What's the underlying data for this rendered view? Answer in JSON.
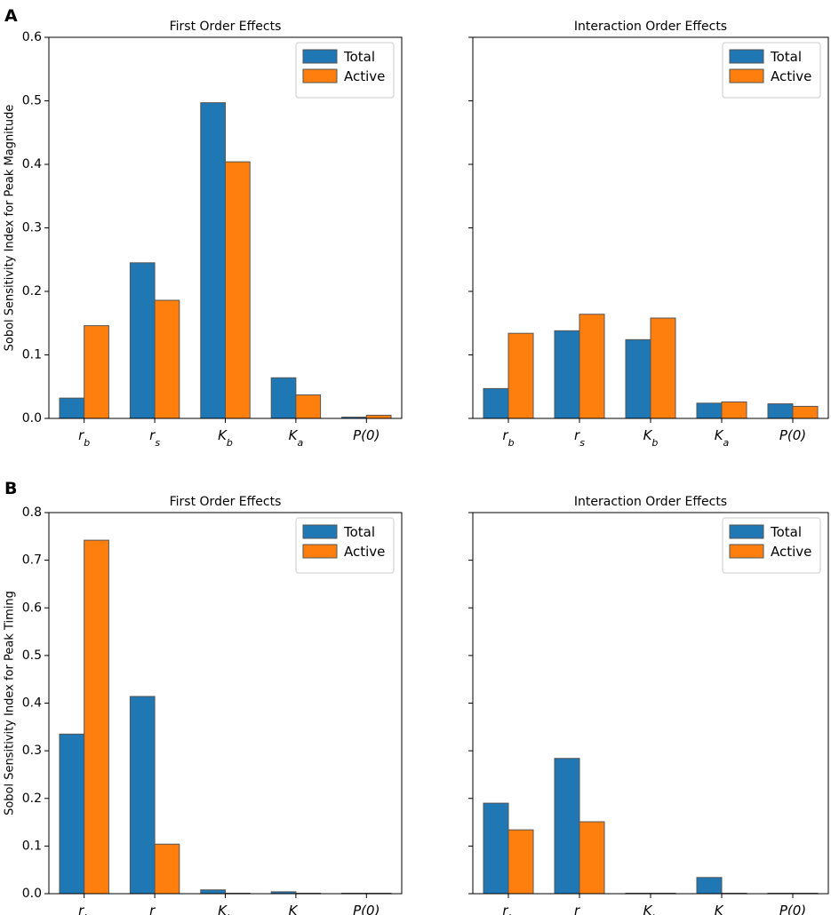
{
  "chart_data": [
    {
      "panel": "A",
      "type": "bar",
      "title": "First Order Effects",
      "ylabel": "Sobol Sensitivity Index for Peak Magnitude",
      "xlabel": "",
      "ylim": [
        0,
        0.6
      ],
      "yticks": [
        "0.0",
        "0.1",
        "0.2",
        "0.3",
        "0.4",
        "0.5",
        "0.6"
      ],
      "categories": [
        {
          "base": "r",
          "sub": "b"
        },
        {
          "base": "r",
          "sub": "s"
        },
        {
          "base": "K",
          "sub": "b"
        },
        {
          "base": "K",
          "sub": "a"
        },
        {
          "base": "P(0)",
          "sub": ""
        }
      ],
      "series": [
        {
          "name": "Total",
          "values": [
            0.032,
            0.245,
            0.497,
            0.064,
            0.002
          ]
        },
        {
          "name": "Active",
          "values": [
            0.146,
            0.186,
            0.404,
            0.037,
            0.005
          ]
        }
      ],
      "legend": {
        "position": "top-right",
        "entries": [
          "Total",
          "Active"
        ]
      }
    },
    {
      "panel": "",
      "type": "bar",
      "title": "Interaction Order Effects",
      "ylabel": "",
      "xlabel": "",
      "ylim": [
        0,
        0.6
      ],
      "yticks": [],
      "categories": [
        {
          "base": "r",
          "sub": "b"
        },
        {
          "base": "r",
          "sub": "s"
        },
        {
          "base": "K",
          "sub": "b"
        },
        {
          "base": "K",
          "sub": "a"
        },
        {
          "base": "P(0)",
          "sub": ""
        }
      ],
      "series": [
        {
          "name": "Total",
          "values": [
            0.047,
            0.138,
            0.124,
            0.024,
            0.023
          ]
        },
        {
          "name": "Active",
          "values": [
            0.134,
            0.164,
            0.158,
            0.026,
            0.019
          ]
        }
      ],
      "legend": {
        "position": "top-right",
        "entries": [
          "Total",
          "Active"
        ]
      }
    },
    {
      "panel": "B",
      "type": "bar",
      "title": "First Order Effects",
      "ylabel": "Sobol Sensitivity Index for Peak Timing",
      "xlabel": "",
      "ylim": [
        0,
        0.8
      ],
      "yticks": [
        "0.0",
        "0.1",
        "0.2",
        "0.3",
        "0.4",
        "0.5",
        "0.6",
        "0.7",
        "0.8"
      ],
      "categories": [
        {
          "base": "r",
          "sub": "b"
        },
        {
          "base": "r",
          "sub": "s"
        },
        {
          "base": "K",
          "sub": "b"
        },
        {
          "base": "K",
          "sub": "a"
        },
        {
          "base": "P(0)",
          "sub": ""
        }
      ],
      "series": [
        {
          "name": "Total",
          "values": [
            0.335,
            0.414,
            0.008,
            0.004,
            0.001
          ]
        },
        {
          "name": "Active",
          "values": [
            0.742,
            0.104,
            0.001,
            0.001,
            0.001
          ]
        }
      ],
      "legend": {
        "position": "top-right",
        "entries": [
          "Total",
          "Active"
        ]
      }
    },
    {
      "panel": "",
      "type": "bar",
      "title": "Interaction Order Effects",
      "ylabel": "",
      "xlabel": "",
      "ylim": [
        0,
        0.8
      ],
      "yticks": [],
      "categories": [
        {
          "base": "r",
          "sub": "b"
        },
        {
          "base": "r",
          "sub": "s"
        },
        {
          "base": "K",
          "sub": "b"
        },
        {
          "base": "K",
          "sub": "a"
        },
        {
          "base": "P(0)",
          "sub": ""
        }
      ],
      "series": [
        {
          "name": "Total",
          "values": [
            0.19,
            0.284,
            0.001,
            0.034,
            0.001
          ]
        },
        {
          "name": "Active",
          "values": [
            0.134,
            0.151,
            0.001,
            0.001,
            0.001
          ]
        }
      ],
      "legend": {
        "position": "top-right",
        "entries": [
          "Total",
          "Active"
        ]
      }
    }
  ],
  "colors": {
    "Total": "#1f77b4",
    "Active": "#ff7f0e"
  }
}
